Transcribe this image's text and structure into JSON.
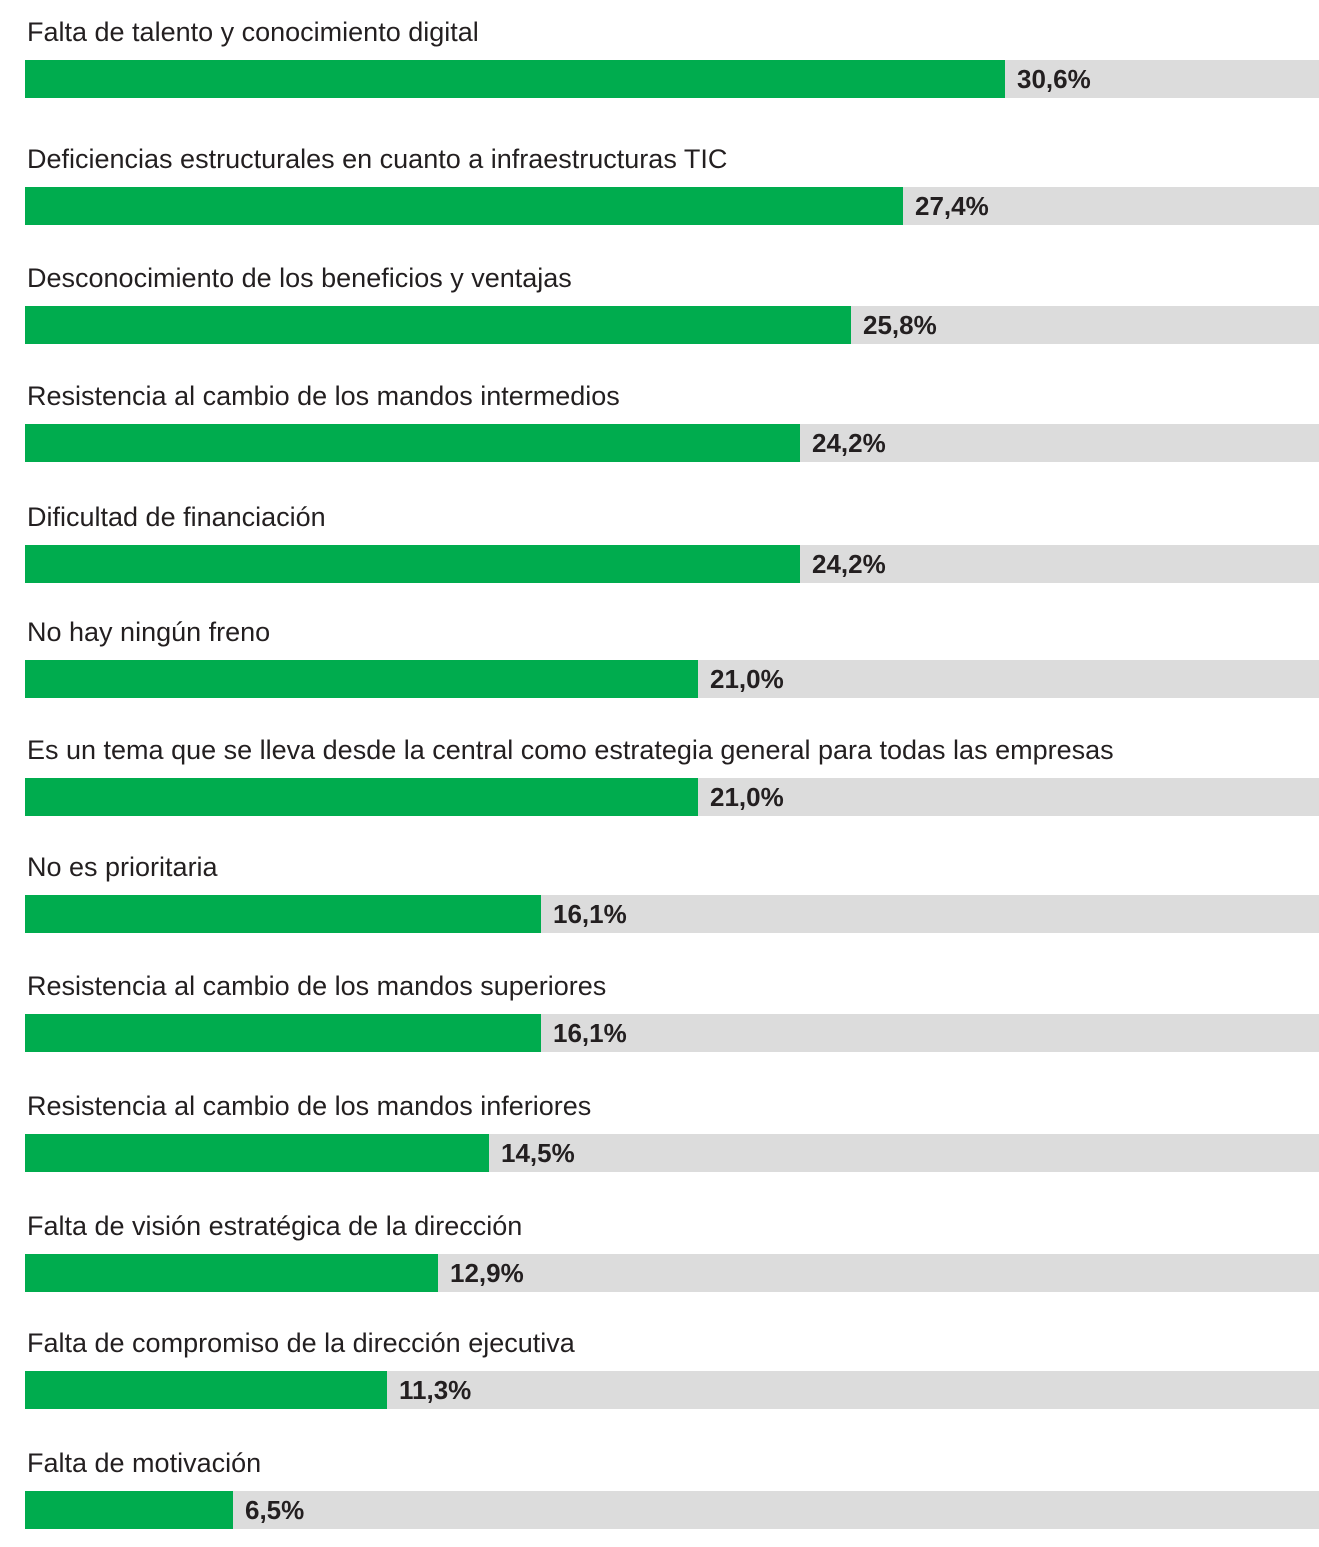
{
  "chart_data": {
    "type": "bar",
    "orientation": "horizontal",
    "bar_color": "#00ac4e",
    "track_color": "#dcdcdc",
    "xlim": [
      0,
      40.4
    ],
    "categories": [
      "Falta de talento y conocimiento digital",
      "Deficiencias estructurales en cuanto a infraestructuras TIC",
      "Desconocimiento de los beneficios y ventajas",
      "Resistencia al cambio de los mandos intermedios",
      "Dificultad de financiación",
      "No hay ningún freno",
      "Es un tema que se lleva desde la central como estrategia general para todas las empresas",
      "No es prioritaria",
      "Resistencia al cambio de los mandos superiores",
      "Resistencia al cambio de los mandos inferiores",
      "Falta de visión estratégica de la dirección",
      "Falta de compromiso de la dirección ejecutiva",
      "Falta de motivación"
    ],
    "values": [
      30.6,
      27.4,
      25.8,
      24.2,
      24.2,
      21.0,
      21.0,
      16.1,
      16.1,
      14.5,
      12.9,
      11.3,
      6.5
    ],
    "value_labels": [
      "30,6%",
      "27,4%",
      "25,8%",
      "24,2%",
      "24,2%",
      "21,0%",
      "21,0%",
      "16,1%",
      "16,1%",
      "14,5%",
      "12,9%",
      "11,3%",
      "6,5%"
    ]
  }
}
